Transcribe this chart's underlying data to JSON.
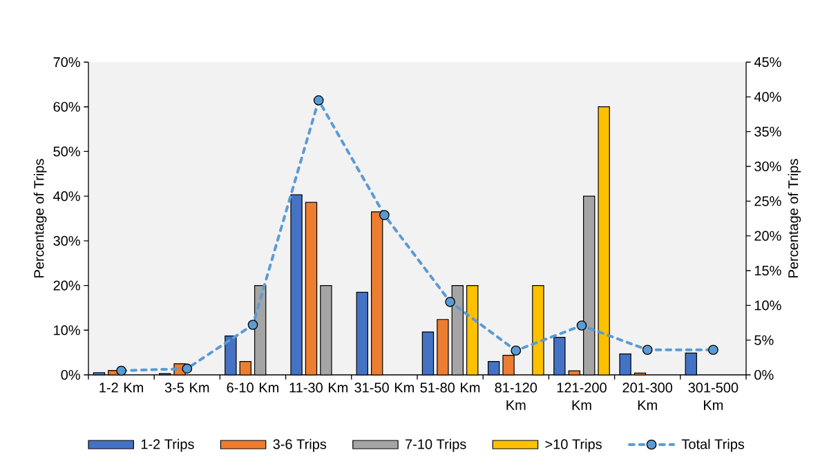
{
  "chart_data": {
    "type": "bar",
    "categories": [
      "1-2 Km",
      "3-5 Km",
      "6-10 Km",
      "11-30 Km",
      "31-50 Km",
      "51-80 Km",
      "81-120 Km",
      "121-200 Km",
      "201-300 Km",
      "301-500 Km"
    ],
    "series": [
      {
        "name": "1-2 Trips",
        "color": "#4472c4",
        "values": [
          0.5,
          0.3,
          8.7,
          40.3,
          18.5,
          9.6,
          3.0,
          8.4,
          4.7,
          4.9
        ]
      },
      {
        "name": "3-6 Trips",
        "color": "#ed7d31",
        "values": [
          1.0,
          2.5,
          3.0,
          38.6,
          36.5,
          12.4,
          4.4,
          0.9,
          0.4,
          null
        ]
      },
      {
        "name": "7-10 Trips",
        "color": "#a5a5a5",
        "values": [
          null,
          null,
          20,
          20,
          null,
          20,
          null,
          40,
          null,
          null
        ]
      },
      {
        "name": ">10 Trips",
        "color": "#ffc000",
        "values": [
          null,
          null,
          null,
          null,
          null,
          20,
          20,
          60,
          null,
          null
        ]
      },
      {
        "name": "Total Trips",
        "type": "line",
        "axis": "y2",
        "color": "#5b9bd5",
        "marker": "circle",
        "line_style": "dashed",
        "values": [
          0.6,
          0.9,
          7.2,
          39.5,
          23.0,
          10.5,
          3.5,
          7.1,
          3.6,
          3.6
        ]
      }
    ],
    "ylabel": "Percentage of Trips",
    "y2label": "Percentage of Trips",
    "ylim": [
      0,
      70
    ],
    "yticks": [
      {
        "value": 0,
        "label": "0%"
      },
      {
        "value": 10,
        "label": "10%"
      },
      {
        "value": 20,
        "label": "20%"
      },
      {
        "value": 30,
        "label": "30%"
      },
      {
        "value": 40,
        "label": "40%"
      },
      {
        "value": 50,
        "label": "50%"
      },
      {
        "value": 60,
        "label": "60%"
      },
      {
        "value": 70,
        "label": "70%"
      }
    ],
    "y2lim": [
      0,
      45
    ],
    "y2ticks": [
      {
        "value": 0,
        "label": "0%"
      },
      {
        "value": 5,
        "label": "5%"
      },
      {
        "value": 10,
        "label": "10%"
      },
      {
        "value": 15,
        "label": "15%"
      },
      {
        "value": 20,
        "label": "20%"
      },
      {
        "value": 25,
        "label": "25%"
      },
      {
        "value": 30,
        "label": "30%"
      },
      {
        "value": 35,
        "label": "35%"
      },
      {
        "value": 40,
        "label": "40%"
      },
      {
        "value": 45,
        "label": "45%"
      }
    ],
    "legend": "bottom"
  }
}
